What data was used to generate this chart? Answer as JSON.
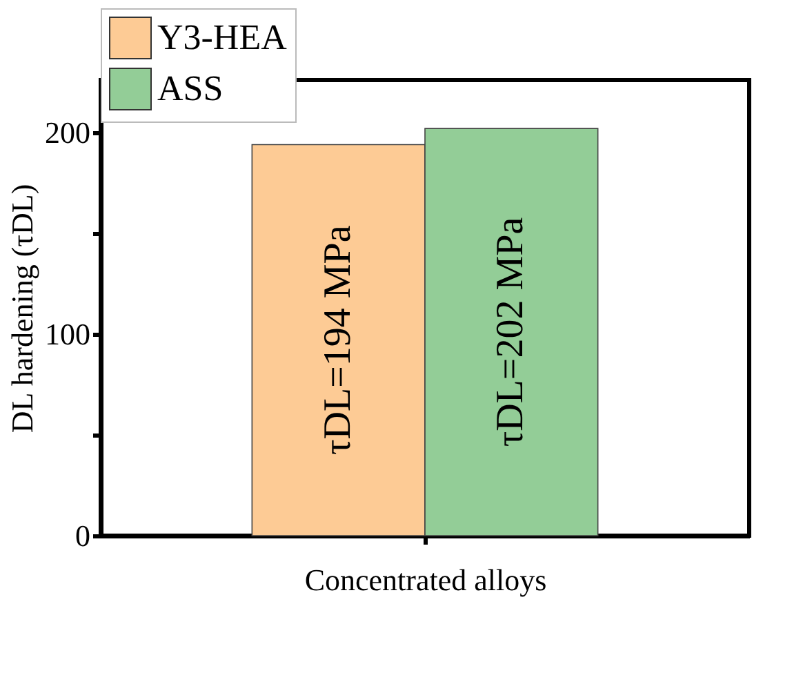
{
  "chart_data": {
    "type": "bar",
    "xlabel": "Concentrated alloys",
    "ylabel": "DL hardening (τDL)",
    "categories": [
      null
    ],
    "series": [
      {
        "name": "Y3-HEA",
        "color": "#fdcb95",
        "values": [
          194
        ],
        "value_labels": [
          "τDL=194 MPa"
        ]
      },
      {
        "name": "ASS",
        "color": "#93cd97",
        "values": [
          202
        ],
        "value_labels": [
          "τDL=202 MPa"
        ]
      }
    ],
    "ylim": [
      0,
      226
    ],
    "yticks": [
      0,
      {
        "value": 50,
        "label": null
      },
      100,
      {
        "value": 150,
        "label": null
      },
      200
    ],
    "grid": false,
    "legend": "top"
  }
}
